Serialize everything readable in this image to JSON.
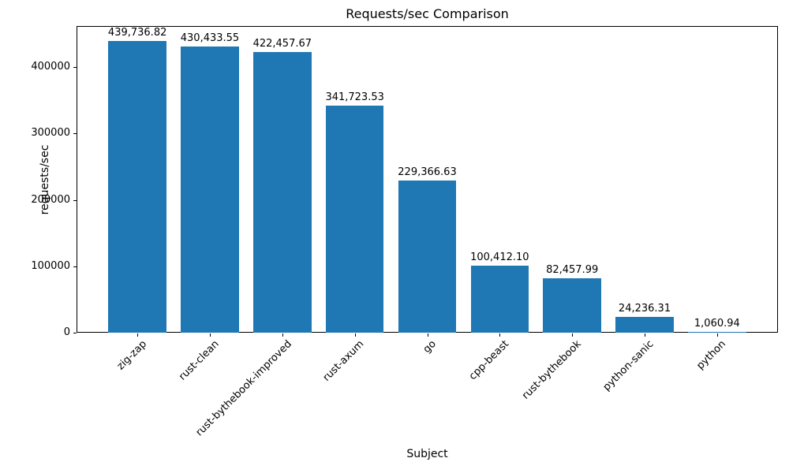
{
  "chart_data": {
    "type": "bar",
    "title": "Requests/sec Comparison",
    "xlabel": "Subject",
    "ylabel": "requests/sec",
    "categories": [
      "zig-zap",
      "rust-clean",
      "rust-bythebook-improved",
      "rust-axum",
      "go",
      "cpp-beast",
      "rust-bythebook",
      "python-sanic",
      "python"
    ],
    "values": [
      439736.82,
      430433.55,
      422457.67,
      341723.53,
      229366.63,
      100412.1,
      82457.99,
      24236.31,
      1060.94
    ],
    "value_labels": [
      "439,736.82",
      "430,433.55",
      "422,457.67",
      "341,723.53",
      "229,366.63",
      "100,412.10",
      "82,457.99",
      "24,236.31",
      "1,060.94"
    ],
    "yticks": [
      0,
      100000,
      200000,
      300000,
      400000
    ],
    "ytick_labels": [
      "0",
      "100000",
      "200000",
      "300000",
      "400000"
    ],
    "ylim": [
      0,
      461723.66
    ],
    "bar_color": "#1f77b4",
    "text_color": "#000000",
    "grid": false,
    "legend_position": "none"
  }
}
